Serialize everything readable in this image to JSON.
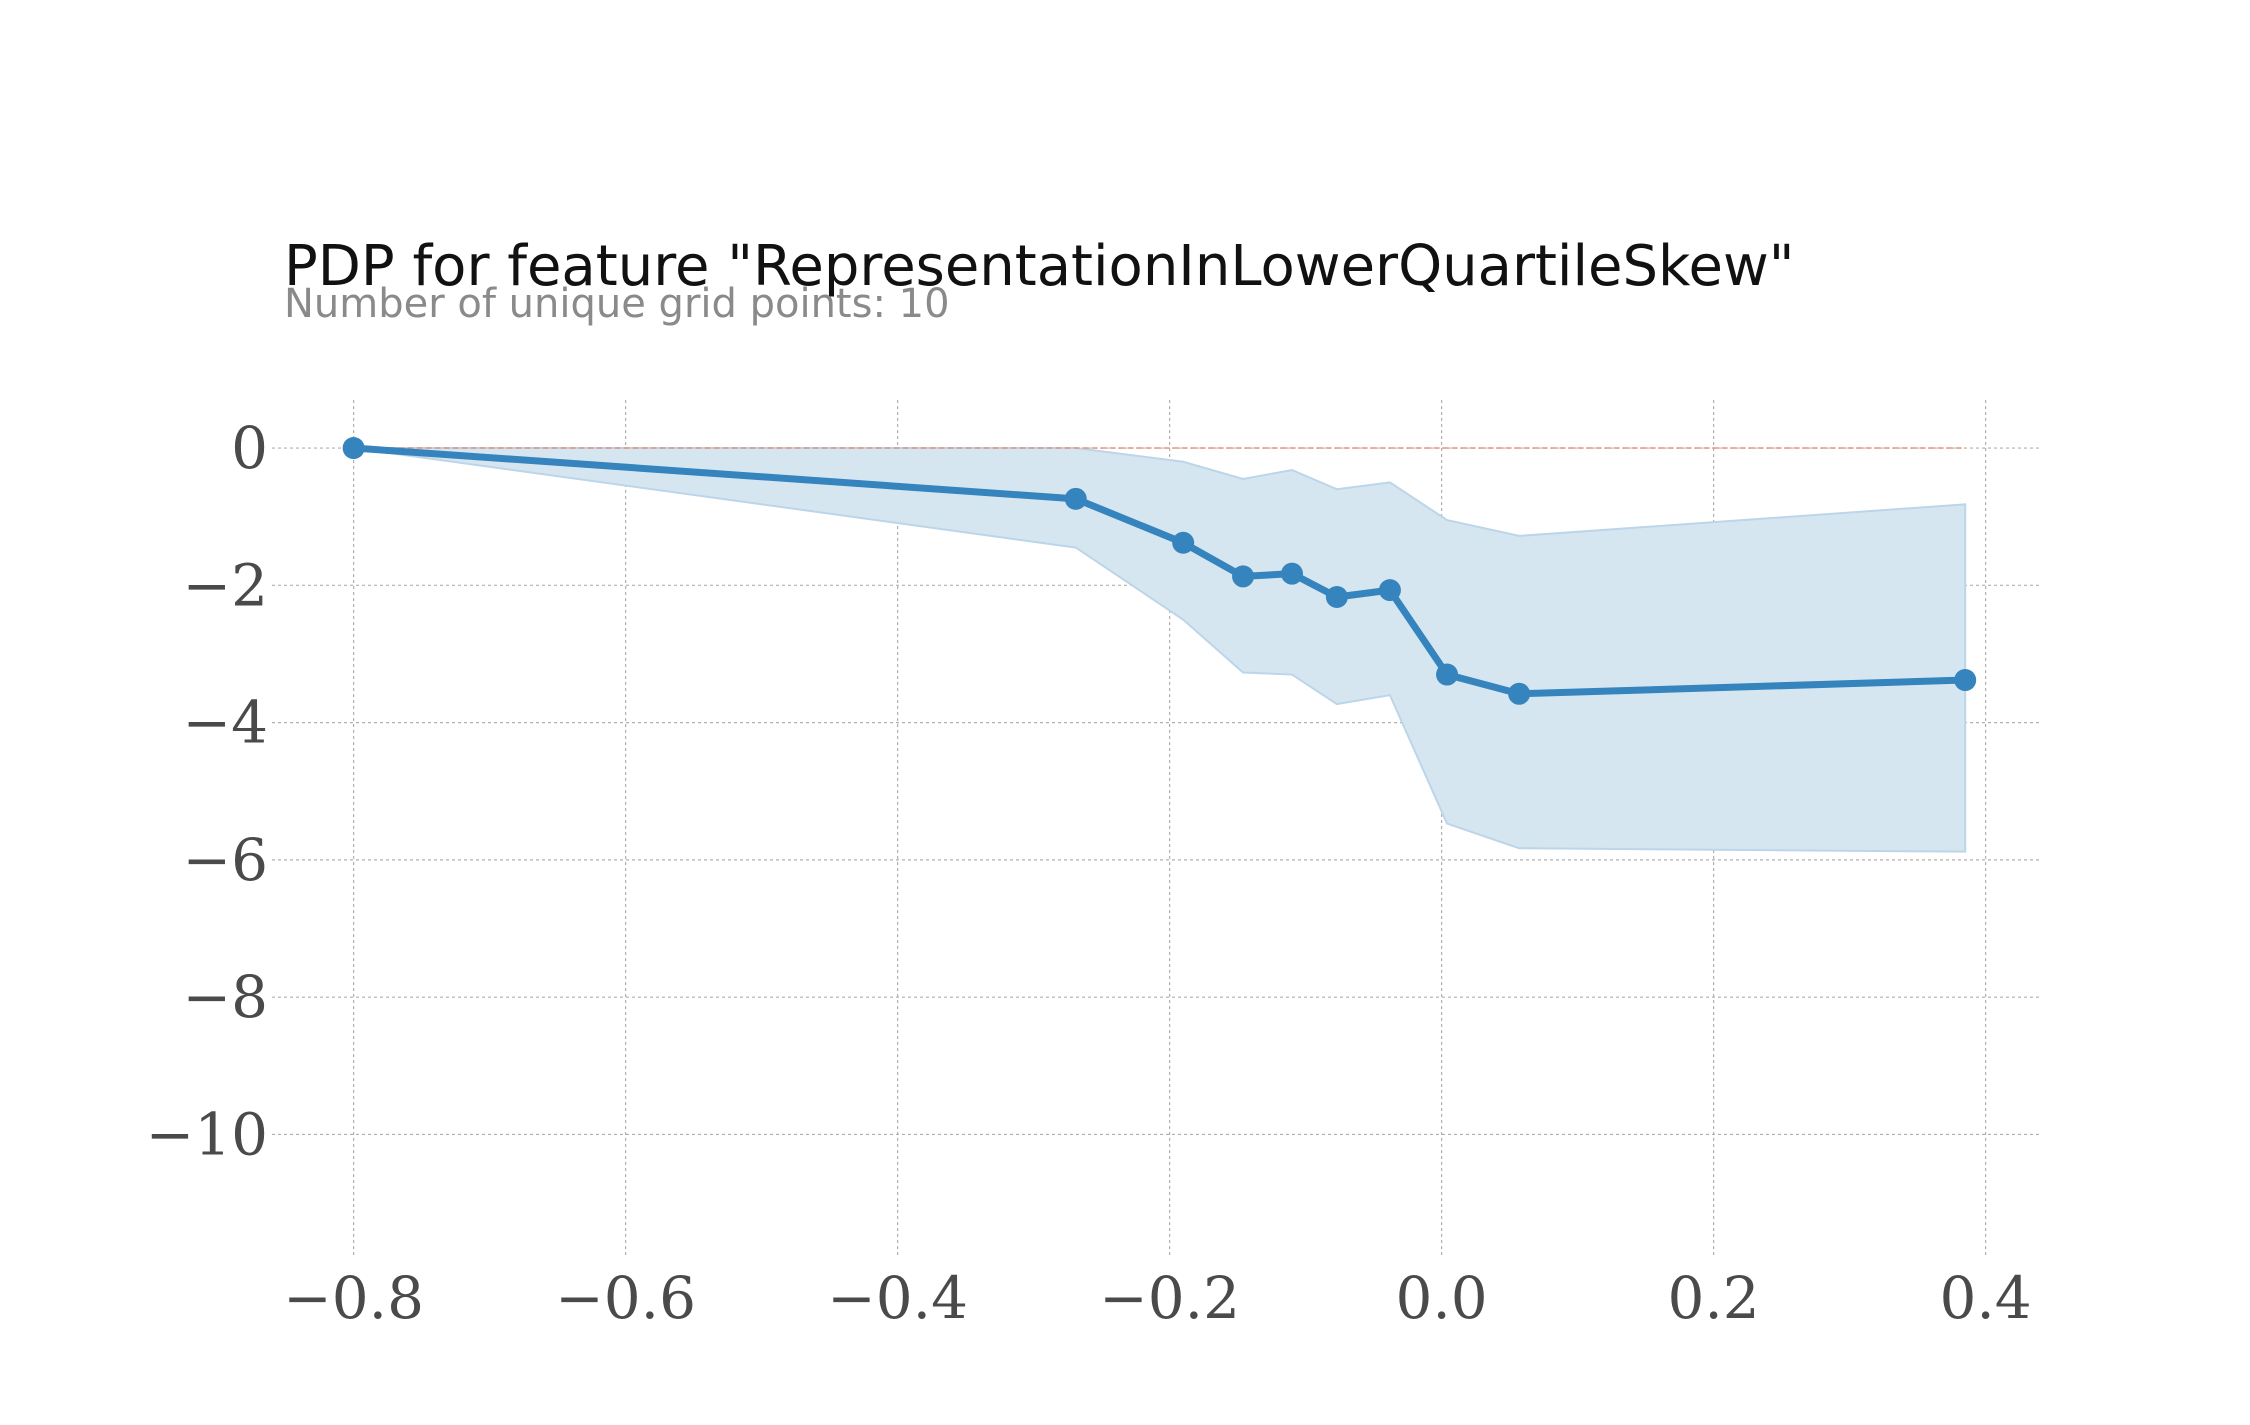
{
  "chart_data": {
    "type": "line",
    "title": "PDP for feature \"RepresentationInLowerQuartileSkew\"",
    "subtitle": "Number of unique grid points: 10",
    "xlabel": "",
    "ylabel": "",
    "xlim": [
      -0.86,
      0.44
    ],
    "ylim": [
      -11.8,
      0.7
    ],
    "grid": true,
    "x_ticks": [
      -0.8,
      -0.6,
      -0.4,
      -0.2,
      0.0,
      0.2,
      0.4
    ],
    "x_tick_labels": [
      "−0.8",
      "−0.6",
      "−0.4",
      "−0.2",
      "0.0",
      "0.2",
      "0.4"
    ],
    "y_ticks": [
      0,
      -2,
      -4,
      -6,
      -8,
      -10
    ],
    "y_tick_labels": [
      "0",
      "−2",
      "−4",
      "−6",
      "−8",
      "−10"
    ],
    "reference_line": {
      "y": 0,
      "color": "#e8947a"
    },
    "series": [
      {
        "color": "#3584bd",
        "band_color": "#d6e6f1",
        "band_edge_color": "#bcd5e8",
        "x": [
          -0.8,
          -0.269,
          -0.19,
          -0.146,
          -0.11,
          -0.077,
          -0.038,
          0.004,
          0.057,
          0.385
        ],
        "y": [
          0.0,
          -0.74,
          -1.38,
          -1.87,
          -1.83,
          -2.17,
          -2.07,
          -3.3,
          -3.58,
          -3.38
        ],
        "upper": [
          0.0,
          0.0,
          -0.2,
          -0.45,
          -0.32,
          -0.6,
          -0.5,
          -1.05,
          -1.28,
          -0.82
        ],
        "lower": [
          0.0,
          -1.45,
          -2.5,
          -3.27,
          -3.3,
          -3.73,
          -3.6,
          -5.47,
          -5.83,
          -5.88
        ]
      }
    ]
  }
}
